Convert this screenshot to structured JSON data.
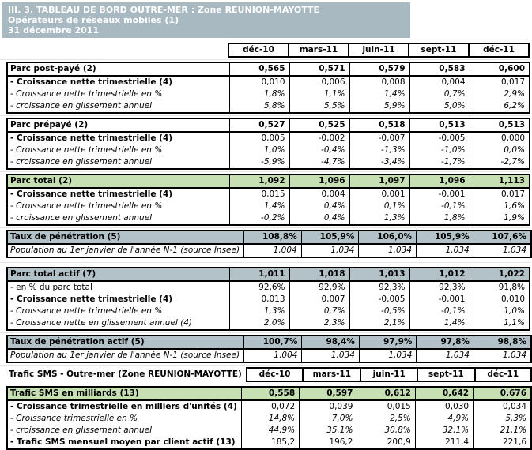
{
  "title": {
    "line1": "III. 3. TABLEAU DE BORD OUTRE-MER : Zone REUNION-MAYOTTE",
    "line2": "Opérateurs de réseaux mobiles (1)",
    "line3": "31 décembre 2011"
  },
  "columns": [
    "déc-10",
    "mars-11",
    "juin-11",
    "sept-11",
    "déc-11"
  ],
  "sms_section_label": "Trafic SMS - Outre-mer (Zone REUNION-MAYOTTE)",
  "colors": {
    "title_bg": "#a8b9c1",
    "section_bg": "#b3c2c9",
    "green_bg": "#c6e0b4"
  },
  "blocks_main": [
    {
      "name": "block-parc-post-paye",
      "header": {
        "label": "Parc post-payé (2)",
        "bg": "plain",
        "values": [
          "0,565",
          "0,571",
          "0,579",
          "0,583",
          "0,600"
        ]
      },
      "rows": [
        {
          "label": "- Croissance nette trimestrielle (4)",
          "style": "bold",
          "values": [
            "0,010",
            "0,006",
            "0,008",
            "0,004",
            "0,017"
          ]
        },
        {
          "label": "- Croissance nette trimestrielle en %",
          "style": "italic",
          "values": [
            "1,8%",
            "1,1%",
            "1,4%",
            "0,7%",
            "2,9%"
          ]
        },
        {
          "label": "- croissance en glissement annuel",
          "style": "italic",
          "values": [
            "5,8%",
            "5,5%",
            "5,9%",
            "5,0%",
            "6,2%"
          ]
        }
      ]
    },
    {
      "name": "block-parc-prepaye",
      "header": {
        "label": "Parc prépayé (2)",
        "bg": "plain",
        "values": [
          "0,527",
          "0,525",
          "0,518",
          "0,513",
          "0,513"
        ]
      },
      "rows": [
        {
          "label": "- Croissance nette trimestrielle (4)",
          "style": "bold",
          "values": [
            "0,005",
            "-0,002",
            "-0,007",
            "-0,005",
            "0,000"
          ]
        },
        {
          "label": "- Croissance nette trimestrielle en %",
          "style": "italic",
          "values": [
            "1,0%",
            "-0,4%",
            "-1,3%",
            "-1,0%",
            "0,0%"
          ]
        },
        {
          "label": "- croissance en glissement annuel",
          "style": "italic",
          "values": [
            "-5,9%",
            "-4,7%",
            "-3,4%",
            "-1,7%",
            "-2,7%"
          ]
        }
      ]
    },
    {
      "name": "block-parc-total",
      "header": {
        "label": "Parc total (2)",
        "bg": "green",
        "values": [
          "1,092",
          "1,096",
          "1,097",
          "1,096",
          "1,113"
        ]
      },
      "rows": [
        {
          "label": "- Croissance nette trimestrielle (4)",
          "style": "bold",
          "values": [
            "0,015",
            "0,004",
            "0,001",
            "-0,001",
            "0,017"
          ]
        },
        {
          "label": "- Croissance nette trimestrielle en %",
          "style": "italic",
          "values": [
            "1,4%",
            "0,4%",
            "0,1%",
            "-0,1%",
            "1,6%"
          ]
        },
        {
          "label": "- croissance en glissement annuel",
          "style": "italic",
          "values": [
            "-0,2%",
            "0,4%",
            "1,3%",
            "1,8%",
            "1,9%"
          ]
        }
      ]
    },
    {
      "name": "block-taux-penetration",
      "header": {
        "label": "Taux de pénétration (5)",
        "bg": "gray",
        "values": [
          "108,8%",
          "105,9%",
          "106,0%",
          "105,9%",
          "107,6%"
        ]
      },
      "rows": [
        {
          "label": "Population au 1er janvier de l'année N-1 (source Insee)",
          "style": "italic",
          "values": [
            "1,004",
            "1,034",
            "1,034",
            "1,034",
            "1,034"
          ]
        }
      ]
    },
    {
      "name": "block-parc-total-actif",
      "header": {
        "label": "Parc total actif (7)",
        "bg": "gray",
        "values": [
          "1,011",
          "1,018",
          "1,013",
          "1,012",
          "1,022"
        ]
      },
      "rows": [
        {
          "label": "- en % du parc total",
          "style": "plain",
          "values": [
            "92,6%",
            "92,9%",
            "92,3%",
            "92,3%",
            "91,8%"
          ]
        },
        {
          "label": "- Croissance nette trimestrielle (4)",
          "style": "bold",
          "values": [
            "0,013",
            "0,007",
            "-0,005",
            "-0,001",
            "0,010"
          ]
        },
        {
          "label": "- Croissance nette trimestrielle en %",
          "style": "italic",
          "values": [
            "1,3%",
            "0,7%",
            "-0,5%",
            "-0,1%",
            "1,0%"
          ]
        },
        {
          "label": "- Croissance nette en glissement annuel (4)",
          "style": "italic",
          "values": [
            "2,0%",
            "2,3%",
            "2,1%",
            "1,4%",
            "1,1%"
          ]
        }
      ]
    },
    {
      "name": "block-taux-penetration-actif",
      "header": {
        "label": "Taux de pénétration actif (5)",
        "bg": "gray",
        "values": [
          "100,7%",
          "98,4%",
          "97,9%",
          "97,8%",
          "98,8%"
        ]
      },
      "rows": [
        {
          "label": "Population au 1er janvier de l'année N-1 (source Insee)",
          "style": "italic",
          "values": [
            "1,004",
            "1,034",
            "1,034",
            "1,034",
            "1,034"
          ]
        }
      ]
    }
  ],
  "sms_block": {
    "name": "block-trafic-sms",
    "header": {
      "label": "Trafic SMS en milliards (13)",
      "bg": "green",
      "values": [
        "0,558",
        "0,597",
        "0,612",
        "0,642",
        "0,676"
      ]
    },
    "rows": [
      {
        "label": "- Croissance trimestrielle en milliers d'unités (4)",
        "style": "bold",
        "values": [
          "0,072",
          "0,039",
          "0,015",
          "0,030",
          "0,034"
        ]
      },
      {
        "label": "- Croissance trimestrielle en %",
        "style": "italic",
        "values": [
          "14,8%",
          "7,0%",
          "2,5%",
          "4,9%",
          "5,3%"
        ]
      },
      {
        "label": "- croissance en glissement annuel",
        "style": "italic",
        "values": [
          "44,9%",
          "35,1%",
          "30,8%",
          "32,1%",
          "21,1%"
        ]
      },
      {
        "label": "- Trafic SMS mensuel moyen par client actif (13)",
        "style": "bold",
        "values": [
          "185,2",
          "196,2",
          "200,9",
          "211,4",
          "221,6"
        ]
      }
    ]
  }
}
